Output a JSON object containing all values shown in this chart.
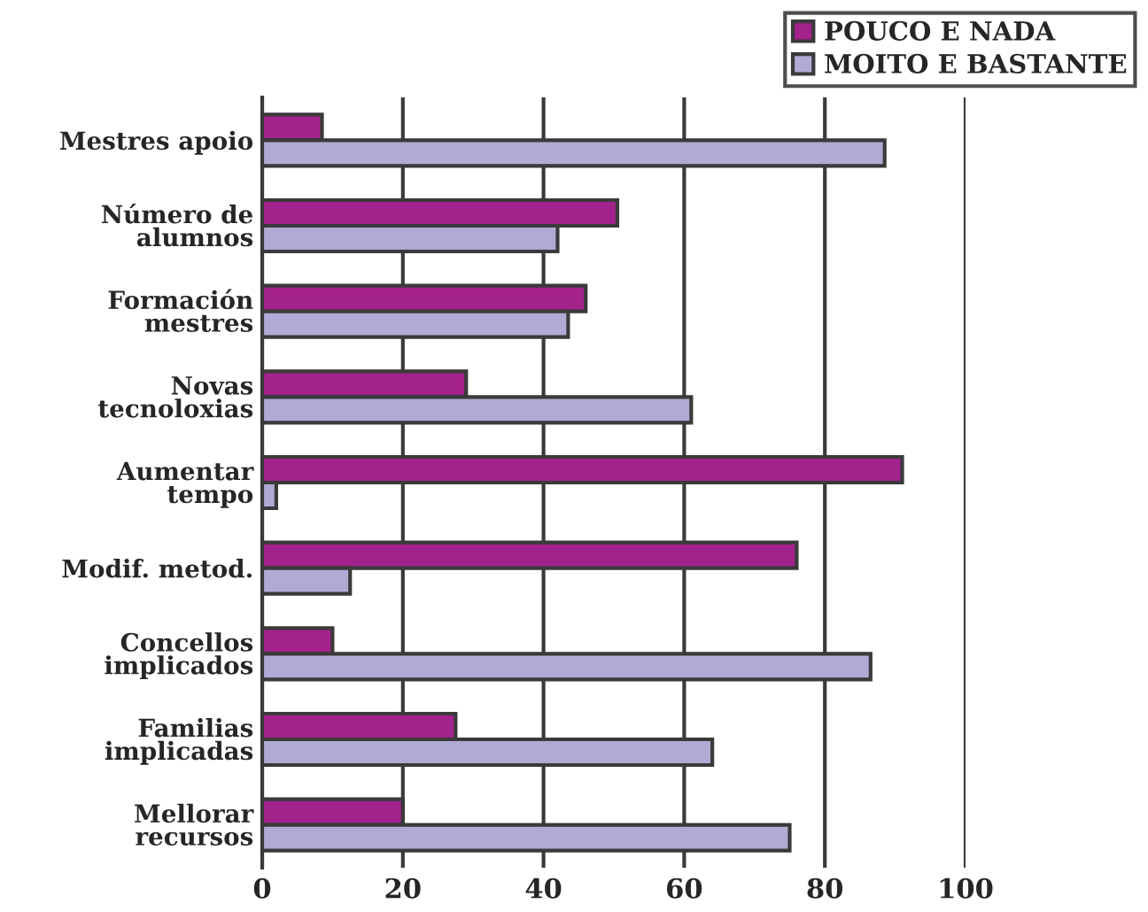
{
  "chart_data": {
    "type": "bar",
    "orientation": "horizontal",
    "categories": [
      "Mestres apoio",
      "Número de\nalumnos",
      "Formación\nmestres",
      "Novas\ntecnoloxias",
      "Aumentar\ntempo",
      "Modif. metod.",
      "Concellos\nimplicados",
      "Familias\nimplicadas",
      "Mellorar\nrecursos"
    ],
    "series": [
      {
        "name": "POUCO E NADA",
        "color": "#a3228b",
        "values": [
          8.5,
          50.5,
          46,
          29,
          91,
          76,
          10,
          27.5,
          20
        ]
      },
      {
        "name": "MOITO E BASTANTE",
        "color": "#afabd5",
        "values": [
          88.5,
          42,
          43.5,
          61,
          2,
          12.5,
          86.5,
          64,
          75
        ]
      }
    ],
    "xlim": [
      0,
      100
    ],
    "xticks": [
      0,
      20,
      40,
      60,
      80,
      100
    ],
    "grid": "x",
    "legend": "top right"
  }
}
